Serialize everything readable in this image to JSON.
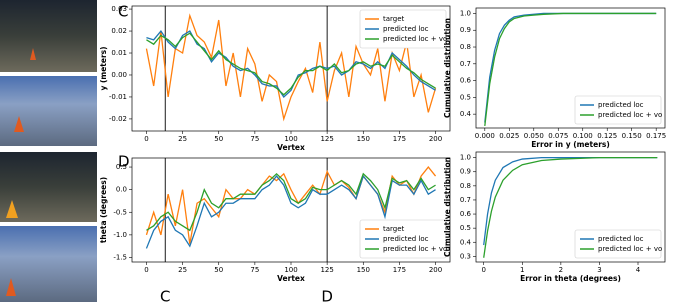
{
  "panel_labels": [
    "C",
    "D"
  ],
  "chart_data": [
    {
      "type": "line",
      "xlabel": "Vertex",
      "ylabel": "y (meters)",
      "legend": "upper right",
      "x": [
        0,
        5,
        10,
        15,
        20,
        25,
        30,
        35,
        40,
        45,
        50,
        55,
        60,
        65,
        70,
        75,
        80,
        85,
        90,
        95,
        100,
        105,
        110,
        115,
        120,
        125,
        130,
        135,
        140,
        145,
        150,
        155,
        160,
        165,
        170,
        175,
        180,
        185,
        190,
        195,
        200
      ],
      "series": [
        {
          "name": "target",
          "color": "#ff7f0e",
          "values": [
            0.012,
            -0.005,
            0.02,
            -0.01,
            0.012,
            0.01,
            0.027,
            0.018,
            0.015,
            0.008,
            0.025,
            -0.005,
            0.01,
            -0.01,
            0.012,
            0.005,
            -0.012,
            0.0,
            -0.003,
            -0.02,
            -0.01,
            -0.003,
            0.003,
            -0.008,
            0.015,
            -0.012,
            0.002,
            0.01,
            -0.01,
            0.013,
            0.005,
            0.0,
            0.012,
            -0.012,
            0.01,
            0.002,
            0.015,
            -0.01,
            0.0,
            -0.017,
            -0.006
          ]
        },
        {
          "name": "predicted loc",
          "color": "#1f77b4",
          "values": [
            0.017,
            0.016,
            0.02,
            0.015,
            0.012,
            0.018,
            0.02,
            0.014,
            0.012,
            0.006,
            0.01,
            0.008,
            0.004,
            0.002,
            0.003,
            0.0,
            -0.004,
            -0.005,
            -0.005,
            -0.01,
            -0.007,
            0.0,
            0.001,
            0.003,
            0.004,
            0.003,
            0.004,
            0.0,
            0.002,
            0.006,
            0.005,
            0.003,
            0.006,
            0.003,
            0.01,
            0.007,
            0.004,
            0.0,
            -0.003,
            -0.005,
            -0.007
          ]
        },
        {
          "name": "predicted loc + vo",
          "color": "#2ca02c",
          "values": [
            0.016,
            0.014,
            0.018,
            0.016,
            0.013,
            0.017,
            0.019,
            0.015,
            0.011,
            0.007,
            0.011,
            0.007,
            0.005,
            0.003,
            0.002,
            0.001,
            -0.003,
            -0.004,
            -0.006,
            -0.009,
            -0.006,
            -0.001,
            0.002,
            0.002,
            0.004,
            0.002,
            0.005,
            0.001,
            0.002,
            0.005,
            0.006,
            0.004,
            0.005,
            0.004,
            0.009,
            0.006,
            0.003,
            0.001,
            -0.002,
            -0.004,
            -0.006
          ]
        }
      ],
      "vlines": [
        13,
        125
      ],
      "xlim": [
        -10,
        210
      ],
      "ylim": [
        -0.0255,
        0.0314
      ],
      "xticks": [
        0,
        25,
        50,
        75,
        100,
        125,
        150,
        175,
        200
      ],
      "yticks": [
        -0.02,
        -0.01,
        {
          "value": 0,
          "label": "0.00"
        },
        0.01,
        0.02,
        0.03
      ]
    },
    {
      "type": "line",
      "xlabel": "Error in y (meters)",
      "ylabel": "Cumulative distribution",
      "legend": "lower right",
      "x": [
        0,
        0.005,
        0.01,
        0.015,
        0.02,
        0.025,
        0.03,
        0.04,
        0.05,
        0.06,
        0.08,
        0.1,
        0.12,
        0.15,
        0.175
      ],
      "series": [
        {
          "name": "predicted loc",
          "color": "#1f77b4",
          "values": [
            0.35,
            0.62,
            0.78,
            0.88,
            0.93,
            0.96,
            0.98,
            0.99,
            0.995,
            1,
            1,
            1,
            1,
            1,
            1
          ]
        },
        {
          "name": "predicted loc + vo",
          "color": "#2ca02c",
          "values": [
            0.33,
            0.58,
            0.74,
            0.85,
            0.91,
            0.95,
            0.97,
            0.985,
            0.99,
            0.995,
            1,
            1,
            1,
            1,
            1
          ]
        }
      ],
      "xlim": [
        -0.009,
        0.184
      ],
      "ylim": [
        0.3175,
        1.0325
      ],
      "xticks": [
        {
          "value": 0,
          "label": "0.000"
        },
        0.025,
        {
          "value": 0.05,
          "label": "0.050"
        },
        0.075,
        {
          "value": 0.1,
          "label": "0.100"
        },
        0.125,
        {
          "value": 0.15,
          "label": "0.150"
        },
        0.175
      ],
      "yticks": [
        0.4,
        0.5,
        0.6,
        0.7,
        0.8,
        0.9,
        {
          "value": 1,
          "label": "1.0"
        }
      ]
    },
    {
      "type": "line",
      "xlabel": "Vertex",
      "ylabel": "theta (degrees)",
      "legend": "lower right",
      "x": [
        0,
        5,
        10,
        15,
        20,
        25,
        30,
        35,
        40,
        45,
        50,
        55,
        60,
        65,
        70,
        75,
        80,
        85,
        90,
        95,
        100,
        105,
        110,
        115,
        120,
        125,
        130,
        135,
        140,
        145,
        150,
        155,
        160,
        165,
        170,
        175,
        180,
        185,
        190,
        195,
        200
      ],
      "series": [
        {
          "name": "target",
          "color": "#ff7f0e",
          "values": [
            -1.0,
            -0.5,
            -1.0,
            -0.1,
            -0.8,
            0.0,
            -1.2,
            -0.3,
            -0.2,
            -0.4,
            -0.6,
            0.0,
            -0.2,
            -0.2,
            0.0,
            -0.1,
            0.1,
            0.3,
            0.2,
            0.35,
            0.0,
            -0.3,
            -0.1,
            0.1,
            -0.1,
            0.4,
            0.1,
            0.2,
            0.05,
            -0.2,
            0.3,
            0.1,
            -0.1,
            -0.5,
            0.3,
            0.1,
            0.2,
            -0.1,
            0.3,
            0.5,
            0.3
          ]
        },
        {
          "name": "predicted loc",
          "color": "#1f77b4",
          "values": [
            -1.3,
            -0.9,
            -0.7,
            -0.6,
            -0.9,
            -1.0,
            -1.25,
            -0.8,
            -0.3,
            -0.6,
            -0.5,
            -0.3,
            -0.3,
            -0.2,
            -0.2,
            -0.2,
            0.0,
            0.1,
            0.3,
            0.1,
            -0.3,
            -0.4,
            -0.3,
            0.0,
            -0.1,
            -0.1,
            0.0,
            0.1,
            0.0,
            -0.2,
            0.3,
            0.1,
            -0.1,
            -0.6,
            0.2,
            0.1,
            0.1,
            -0.1,
            0.2,
            -0.1,
            0.0
          ]
        },
        {
          "name": "predicted loc + vo",
          "color": "#2ca02c",
          "values": [
            -0.9,
            -0.8,
            -0.6,
            -0.5,
            -0.7,
            -0.8,
            -0.9,
            -0.5,
            0.0,
            -0.3,
            -0.4,
            -0.2,
            -0.2,
            -0.1,
            -0.1,
            -0.1,
            0.1,
            0.2,
            0.35,
            0.2,
            -0.2,
            -0.3,
            -0.2,
            0.05,
            0.0,
            0.0,
            0.1,
            0.2,
            0.1,
            -0.1,
            0.35,
            0.2,
            0.0,
            -0.4,
            0.25,
            0.15,
            0.2,
            0.0,
            0.25,
            0.0,
            0.1
          ]
        }
      ],
      "vlines": [
        13,
        125
      ],
      "vline_labels": [
        "C",
        "D"
      ],
      "xlim": [
        -10,
        210
      ],
      "ylim": [
        -1.6,
        0.7
      ],
      "xticks": [
        0,
        25,
        50,
        75,
        100,
        125,
        150,
        175,
        200
      ],
      "yticks": [
        -1.5,
        {
          "value": -1,
          "label": "-1.0"
        },
        -0.5,
        {
          "value": 0,
          "label": "0.0"
        },
        0.5
      ]
    },
    {
      "type": "line",
      "xlabel": "Error in theta (degrees)",
      "ylabel": "Cumulative distribution",
      "legend": "lower right",
      "x": [
        0,
        0.1,
        0.2,
        0.3,
        0.5,
        0.75,
        1,
        1.5,
        2,
        3,
        4,
        4.5
      ],
      "series": [
        {
          "name": "predicted loc",
          "color": "#1f77b4",
          "values": [
            0.38,
            0.6,
            0.75,
            0.84,
            0.93,
            0.97,
            0.99,
            1,
            1,
            1,
            1,
            1
          ]
        },
        {
          "name": "predicted loc + vo",
          "color": "#2ca02c",
          "values": [
            0.29,
            0.48,
            0.62,
            0.72,
            0.84,
            0.91,
            0.95,
            0.98,
            0.99,
            1,
            1,
            1
          ]
        }
      ],
      "xlim": [
        -0.2,
        4.7
      ],
      "ylim": [
        0.26,
        1.04
      ],
      "xticks": [
        0,
        1,
        2,
        3,
        4
      ],
      "yticks": [
        0.3,
        0.4,
        0.5,
        0.6,
        0.7,
        0.8,
        0.9,
        {
          "value": 1,
          "label": "1.0"
        }
      ]
    }
  ]
}
